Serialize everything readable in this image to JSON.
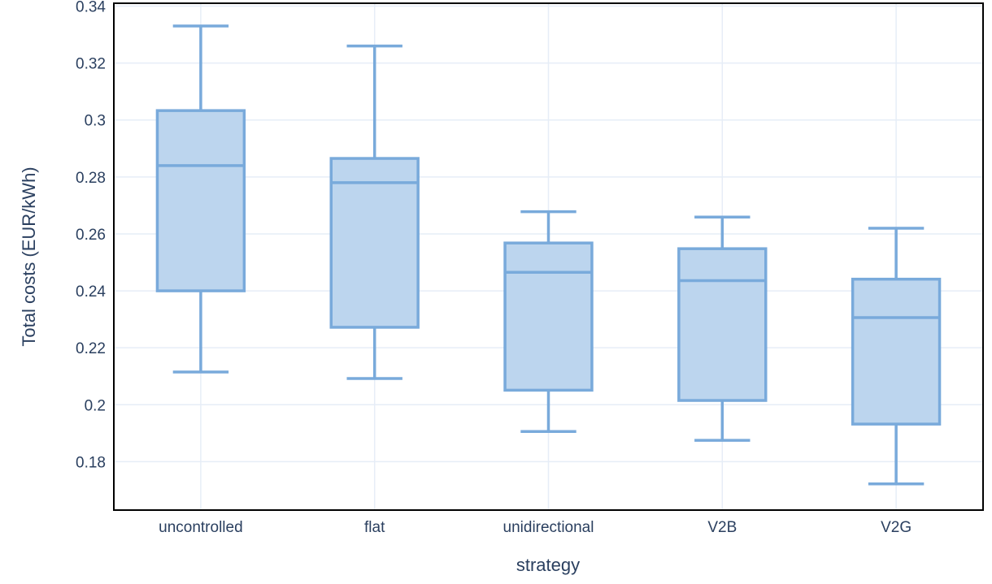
{
  "chart_data": {
    "type": "box",
    "title": "",
    "xlabel": "strategy",
    "ylabel": "Total costs (EUR/kWh)",
    "ylim": [
      0.163,
      0.341
    ],
    "y_ticks": [
      0.18,
      0.2,
      0.22,
      0.24,
      0.26,
      0.28,
      0.3,
      0.32,
      0.34
    ],
    "y_tick_labels": [
      "0.18",
      "0.2",
      "0.22",
      "0.24",
      "0.26",
      "0.28",
      "0.3",
      "0.32",
      "0.34"
    ],
    "grid": true,
    "categories": [
      "uncontrolled",
      "flat",
      "unidirectional",
      "V2B",
      "V2G"
    ],
    "boxes": [
      {
        "category": "uncontrolled",
        "min": 0.2115,
        "q1": 0.24,
        "median": 0.284,
        "q3": 0.3033,
        "max": 0.333
      },
      {
        "category": "flat",
        "min": 0.2092,
        "q1": 0.2272,
        "median": 0.278,
        "q3": 0.2865,
        "max": 0.326
      },
      {
        "category": "unidirectional",
        "min": 0.1906,
        "q1": 0.2051,
        "median": 0.2465,
        "q3": 0.2568,
        "max": 0.2678
      },
      {
        "category": "V2B",
        "min": 0.1875,
        "q1": 0.2015,
        "median": 0.2436,
        "q3": 0.2548,
        "max": 0.2659
      },
      {
        "category": "V2G",
        "min": 0.1722,
        "q1": 0.1932,
        "median": 0.2306,
        "q3": 0.2441,
        "max": 0.262
      }
    ],
    "colors": {
      "box_fill": "#bcd5ee",
      "box_stroke": "#79aadb",
      "grid": "#e6edf7",
      "text": "#2a3f5f",
      "frame": "#000000"
    }
  }
}
